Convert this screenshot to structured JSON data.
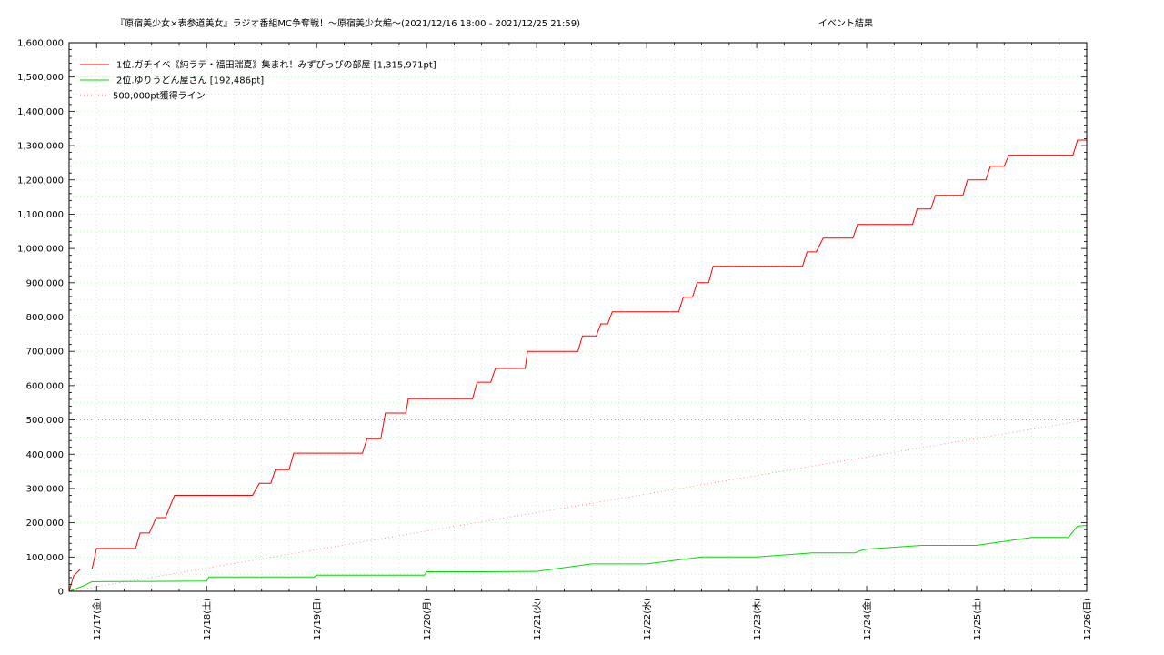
{
  "chart_data": {
    "type": "line",
    "title": "『原宿美少女×表参道美女』ラジオ番組MC争奪戦！〜原宿美少女編〜(2021/12/16 18:00 - 2021/12/25 21:59)",
    "subtitle": "イベント結果",
    "x_tick_labels": [
      "12/17(金)",
      "12/18(土)",
      "12/19(日)",
      "12/20(月)",
      "12/21(火)",
      "12/22(水)",
      "12/23(木)",
      "12/24(金)",
      "12/25(土)",
      "12/26(日)"
    ],
    "y_tick_labels": [
      "0",
      "100,000",
      "200,000",
      "300,000",
      "400,000",
      "500,000",
      "600,000",
      "700,000",
      "800,000",
      "900,000",
      "1,000,000",
      "1,100,000",
      "1,200,000",
      "1,300,000",
      "1,400,000",
      "1,500,000",
      "1,600,000"
    ],
    "ylim": [
      0,
      1600000
    ],
    "xlim": [
      "2021-12-16 18:00",
      "2021-12-26 00:00"
    ],
    "grid": true,
    "legend": "top-left",
    "reference_line": {
      "name": "500,000pt獲得ライン",
      "from": [
        "2021-12-16 18:00",
        0
      ],
      "to": [
        "2021-12-26 00:00",
        500000
      ],
      "horizontal_y": 500000,
      "color": "#f08080"
    },
    "series": [
      {
        "name": "1位.ガチイベ《純ラテ・福田瑞夏》集まれ！みずぴっぴの部屋 [1,315,971pt]",
        "color": "#ff0000",
        "x": [
          "2021-12-16 18:00",
          "2021-12-16 19:00",
          "2021-12-16 20:30",
          "2021-12-16 23:00",
          "2021-12-17 00:00",
          "2021-12-17 02:00",
          "2021-12-17 04:00",
          "2021-12-17 08:30",
          "2021-12-17 09:30",
          "2021-12-17 11:30",
          "2021-12-17 13:00",
          "2021-12-17 15:00",
          "2021-12-17 17:00",
          "2021-12-17 20:00",
          "2021-12-17 21:30",
          "2021-12-18 10:00",
          "2021-12-18 11:30",
          "2021-12-18 14:00",
          "2021-12-18 15:00",
          "2021-12-18 18:00",
          "2021-12-18 19:00",
          "2021-12-19 10:00",
          "2021-12-19 11:00",
          "2021-12-19 14:00",
          "2021-12-19 15:00",
          "2021-12-19 19:30",
          "2021-12-19 20:00",
          "2021-12-20 10:00",
          "2021-12-20 11:00",
          "2021-12-20 14:00",
          "2021-12-20 15:00",
          "2021-12-20 21:30",
          "2021-12-20 22:00",
          "2021-12-21 09:00",
          "2021-12-21 10:00",
          "2021-12-21 13:00",
          "2021-12-21 14:00",
          "2021-12-21 15:30",
          "2021-12-21 16:30",
          "2021-12-22 07:00",
          "2021-12-22 08:00",
          "2021-12-22 10:00",
          "2021-12-22 11:00",
          "2021-12-22 13:30",
          "2021-12-22 14:30",
          "2021-12-23 10:00",
          "2021-12-23 11:00",
          "2021-12-23 13:00",
          "2021-12-23 14:30",
          "2021-12-23 21:00",
          "2021-12-23 22:00",
          "2021-12-24 10:00",
          "2021-12-24 11:00",
          "2021-12-24 14:00",
          "2021-12-24 15:00",
          "2021-12-24 21:00",
          "2021-12-24 22:00",
          "2021-12-25 02:00",
          "2021-12-25 03:00",
          "2021-12-25 06:00",
          "2021-12-25 07:00",
          "2021-12-25 21:00",
          "2021-12-25 22:00",
          "2021-12-26 00:00"
        ],
        "y": [
          0,
          45000,
          65000,
          65000,
          125000,
          125000,
          125000,
          125000,
          170000,
          170000,
          215000,
          215000,
          280000,
          280000,
          280000,
          280000,
          315000,
          315000,
          355000,
          355000,
          403000,
          403000,
          445000,
          445000,
          520000,
          520000,
          562000,
          562000,
          610000,
          610000,
          650000,
          650000,
          700000,
          700000,
          745000,
          745000,
          780000,
          780000,
          815000,
          815000,
          858000,
          858000,
          900000,
          900000,
          948000,
          948000,
          990000,
          990000,
          1030000,
          1030000,
          1070000,
          1070000,
          1115000,
          1115000,
          1155000,
          1155000,
          1200000,
          1200000,
          1240000,
          1240000,
          1272000,
          1272000,
          1315971,
          1315971
        ]
      },
      {
        "name": "2位.ゆりうどん屋さん [192,486pt]",
        "color": "#00dd00",
        "x": [
          "2021-12-16 18:00",
          "2021-12-16 21:00",
          "2021-12-16 23:00",
          "2021-12-17 00:00",
          "2021-12-17 12:00",
          "2021-12-18 00:00",
          "2021-12-18 00:30",
          "2021-12-18 12:00",
          "2021-12-18 23:30",
          "2021-12-19 00:00",
          "2021-12-19 12:00",
          "2021-12-19 23:30",
          "2021-12-20 00:00",
          "2021-12-20 12:00",
          "2021-12-20 23:00",
          "2021-12-21 00:00",
          "2021-12-21 12:00",
          "2021-12-21 23:00",
          "2021-12-22 00:00",
          "2021-12-22 12:00",
          "2021-12-22 23:00",
          "2021-12-23 00:00",
          "2021-12-23 12:00",
          "2021-12-23 21:30",
          "2021-12-23 22:30",
          "2021-12-24 00:00",
          "2021-12-24 12:00",
          "2021-12-24 23:00",
          "2021-12-25 00:00",
          "2021-12-25 12:00",
          "2021-12-25 20:00",
          "2021-12-25 22:00",
          "2021-12-26 00:00"
        ],
        "y": [
          0,
          15000,
          28000,
          28000,
          29000,
          30000,
          42000,
          42000,
          42000,
          47000,
          47000,
          47000,
          57000,
          57000,
          58000,
          58000,
          80000,
          80000,
          80000,
          100000,
          100000,
          100000,
          112000,
          112000,
          118000,
          123000,
          134000,
          134000,
          134000,
          157000,
          157000,
          190000,
          192486
        ]
      }
    ]
  }
}
